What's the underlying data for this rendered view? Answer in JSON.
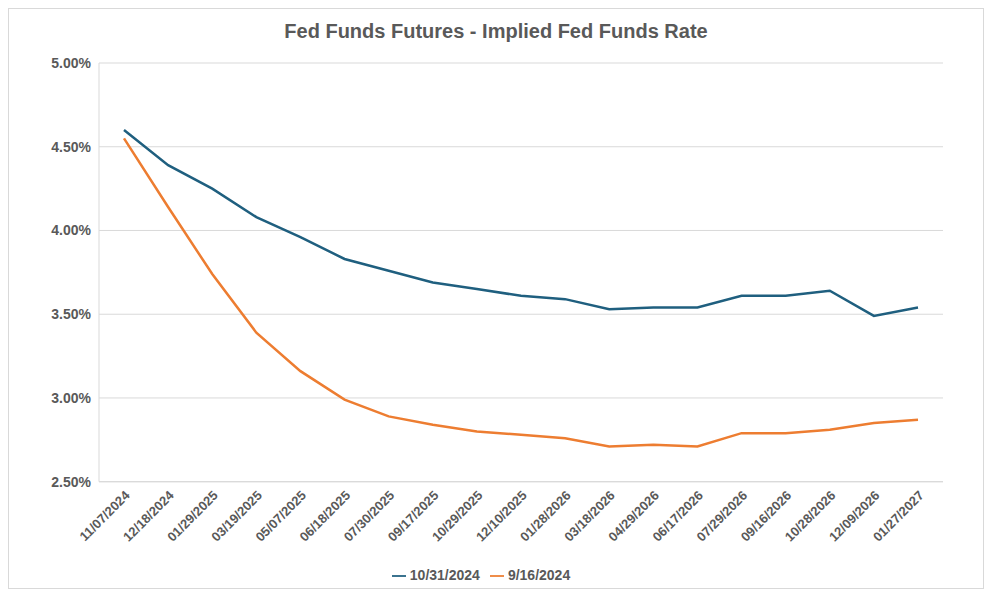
{
  "chart_data": {
    "type": "line",
    "title": "Fed Funds Futures - Implied Fed Funds Rate",
    "categories": [
      "11/07/2024",
      "12/18/2024",
      "01/29/2025",
      "03/19/2025",
      "05/07/2025",
      "06/18/2025",
      "07/30/2025",
      "09/17/2025",
      "10/29/2025",
      "12/10/2025",
      "01/28/2026",
      "03/18/2026",
      "04/29/2026",
      "06/17/2026",
      "07/29/2026",
      "09/16/2026",
      "10/28/2026",
      "12/09/2026",
      "01/27/2027"
    ],
    "series": [
      {
        "name": "10/31/2024",
        "color": "#1f5f7f",
        "values": [
          4.6,
          4.39,
          4.25,
          4.08,
          3.96,
          3.83,
          3.76,
          3.69,
          3.65,
          3.61,
          3.59,
          3.53,
          3.54,
          3.54,
          3.61,
          3.61,
          3.64,
          3.49,
          3.54
        ]
      },
      {
        "name": "9/16/2024",
        "color": "#ed7d31",
        "values": [
          4.55,
          4.14,
          3.74,
          3.39,
          3.16,
          2.99,
          2.89,
          2.84,
          2.8,
          2.78,
          2.76,
          2.71,
          2.72,
          2.71,
          2.79,
          2.79,
          2.81,
          2.85,
          2.87
        ]
      }
    ],
    "ylim": [
      2.5,
      5.0
    ],
    "yticks": [
      {
        "value": 2.5,
        "label": "2.50%"
      },
      {
        "value": 3.0,
        "label": "3.00%"
      },
      {
        "value": 3.5,
        "label": "3.50%"
      },
      {
        "value": 4.0,
        "label": "4.00%"
      },
      {
        "value": 4.5,
        "label": "4.50%"
      },
      {
        "value": 5.0,
        "label": "5.00%"
      }
    ],
    "grid": true,
    "legend": "bottom"
  }
}
